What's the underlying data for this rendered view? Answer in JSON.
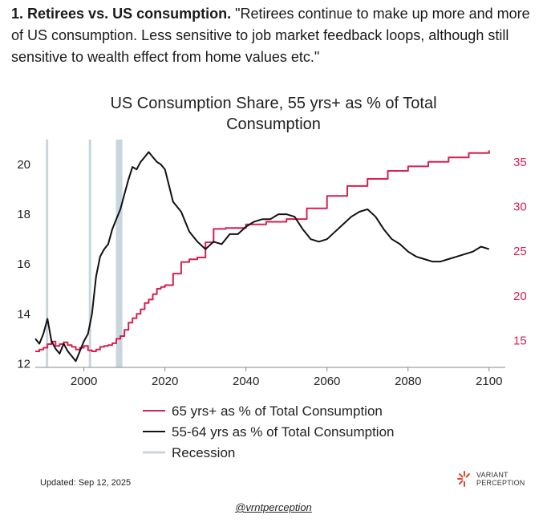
{
  "post": {
    "heading": "1. Retirees vs. US consumption.",
    "body": " \"Retirees continue to make up more and more of US consumption. Less sensitive to job market feedback loops, although still sensitive to wealth effect from home values etc.\""
  },
  "footer": {
    "updated": "Updated: Sep 12, 2025",
    "brand_line1": "VARIANT",
    "brand_line2": "PERCEPTION",
    "handle": "@vrntperception"
  },
  "colors": {
    "series_65": "#d6204e",
    "series_5564": "#111111",
    "recession": "#c9d6de",
    "axis": "#888888"
  },
  "chart_data": {
    "type": "line",
    "title_line1": "US Consumption Share, 55 yrs+ as % of Total",
    "title_line2": "Consumption",
    "xlim": [
      1988,
      2104
    ],
    "x_ticks": [
      2000,
      2020,
      2040,
      2060,
      2080,
      2100
    ],
    "left_axis": {
      "ylim": [
        11.85,
        21.0
      ],
      "ticks": [
        12,
        14,
        16,
        18,
        20
      ],
      "series": "55-64 yrs as % of Total Consumption"
    },
    "right_axis": {
      "ylim": [
        12.0,
        37.5
      ],
      "ticks": [
        15,
        20,
        25,
        30,
        35
      ],
      "series": "65 yrs+ as % of Total Consumption"
    },
    "recessions": [
      [
        1990.6,
        1991.2
      ],
      [
        2001.2,
        2001.8
      ],
      [
        2007.9,
        2009.5
      ]
    ],
    "series": [
      {
        "name": "65 yrs+ as % of Total Consumption",
        "axis": "right",
        "color": "#d6204e",
        "x": [
          1988,
          1989,
          1990,
          1991,
          1992,
          1993,
          1994,
          1995,
          1996,
          1997,
          1998,
          1999,
          2000,
          2001,
          2002,
          2003,
          2004,
          2005,
          2006,
          2007,
          2008,
          2009,
          2010,
          2011,
          2012,
          2013,
          2014,
          2015,
          2016,
          2017,
          2018,
          2019,
          2020,
          2022,
          2024,
          2026,
          2028,
          2030,
          2032,
          2035,
          2040,
          2045,
          2050,
          2055,
          2060,
          2065,
          2070,
          2075,
          2080,
          2085,
          2090,
          2095,
          2100
        ],
        "values": [
          13.8,
          14.0,
          14.2,
          14.6,
          14.9,
          14.4,
          14.6,
          14.8,
          14.5,
          14.3,
          14.0,
          14.2,
          14.4,
          13.9,
          13.8,
          14.0,
          14.3,
          14.4,
          14.5,
          14.7,
          15.2,
          15.5,
          16.2,
          17.0,
          17.5,
          18.0,
          18.5,
          19.2,
          19.6,
          20.2,
          20.8,
          21.0,
          21.2,
          22.5,
          23.8,
          24.1,
          24.3,
          26.0,
          27.5,
          27.6,
          28.0,
          28.3,
          28.6,
          29.8,
          31.2,
          32.3,
          33.1,
          34.0,
          34.5,
          35.0,
          35.5,
          36.0,
          36.3
        ]
      },
      {
        "name": "55-64 yrs as % of Total Consumption",
        "axis": "left",
        "color": "#111111",
        "x": [
          1988,
          1989,
          1990,
          1991,
          1992,
          1993,
          1994,
          1995,
          1996,
          1997,
          1998,
          1999,
          2000,
          2001,
          2002,
          2003,
          2004,
          2005,
          2006,
          2007,
          2008,
          2009,
          2010,
          2011,
          2012,
          2013,
          2014,
          2015,
          2016,
          2017,
          2018,
          2019,
          2020,
          2022,
          2024,
          2026,
          2028,
          2030,
          2032,
          2034,
          2036,
          2038,
          2040,
          2042,
          2044,
          2046,
          2048,
          2050,
          2052,
          2054,
          2056,
          2058,
          2060,
          2062,
          2064,
          2066,
          2068,
          2070,
          2072,
          2074,
          2076,
          2078,
          2080,
          2082,
          2084,
          2086,
          2088,
          2090,
          2092,
          2094,
          2096,
          2098,
          2100
        ],
        "values": [
          13.0,
          12.8,
          13.2,
          13.8,
          12.9,
          12.6,
          12.4,
          12.8,
          12.5,
          12.3,
          12.1,
          12.5,
          12.9,
          13.2,
          14.0,
          15.5,
          16.3,
          16.6,
          16.8,
          17.4,
          17.8,
          18.2,
          18.8,
          19.4,
          19.9,
          19.8,
          20.1,
          20.3,
          20.5,
          20.3,
          20.1,
          20.0,
          19.8,
          18.5,
          18.1,
          17.3,
          16.9,
          16.6,
          16.9,
          16.8,
          17.2,
          17.2,
          17.5,
          17.7,
          17.8,
          17.8,
          18.0,
          18.0,
          17.9,
          17.4,
          17.0,
          16.9,
          17.0,
          17.3,
          17.6,
          17.9,
          18.1,
          18.2,
          17.9,
          17.4,
          17.0,
          16.8,
          16.5,
          16.3,
          16.2,
          16.1,
          16.1,
          16.2,
          16.3,
          16.4,
          16.5,
          16.7,
          16.6
        ]
      }
    ],
    "legend": [
      {
        "label": "65 yrs+ as % of Total Consumption",
        "color": "#d6204e"
      },
      {
        "label": "55-64 yrs as % of Total Consumption",
        "color": "#111111"
      },
      {
        "label": "Recession",
        "color": "#c9d6de"
      }
    ],
    "legend_position": "bottom-center",
    "grid": false
  }
}
